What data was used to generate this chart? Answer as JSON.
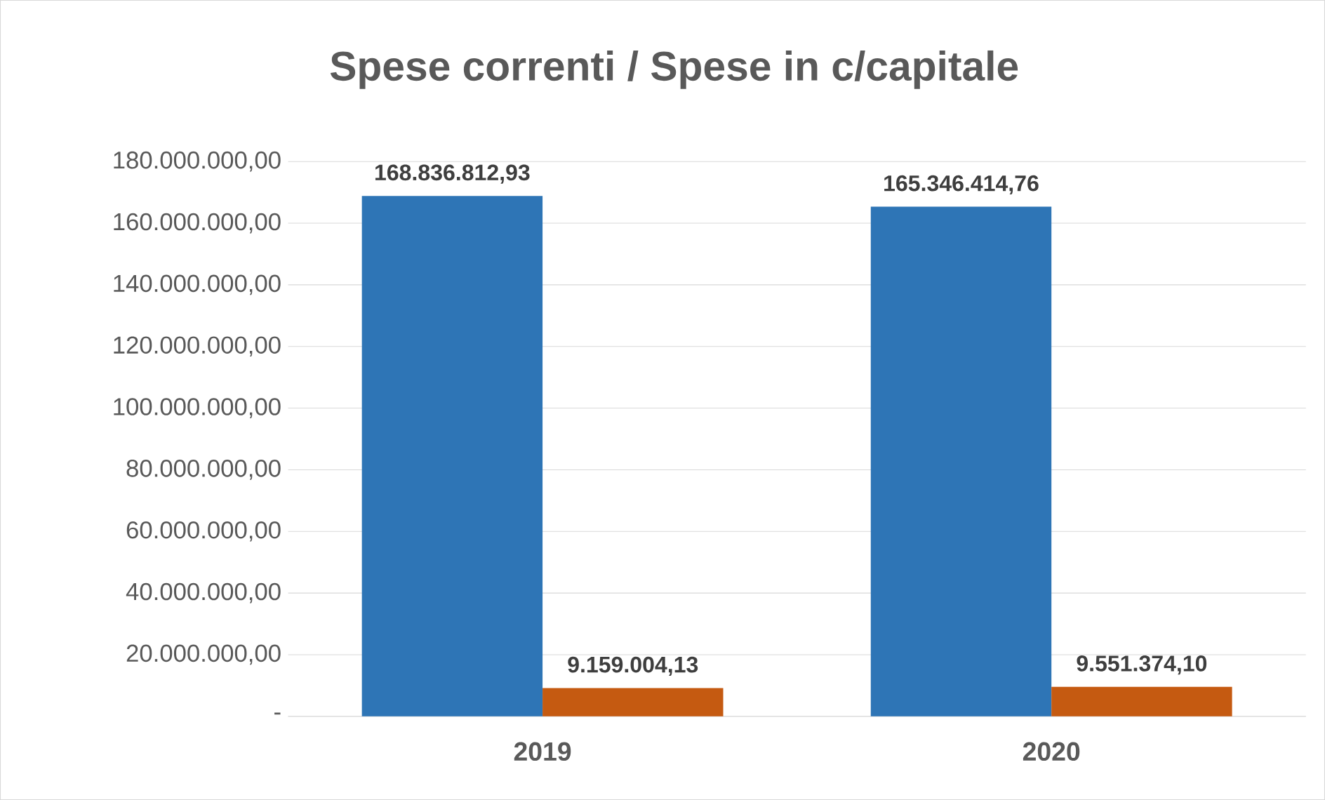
{
  "chart_data": {
    "type": "bar",
    "title": "Spese correnti / Spese in c/capitale",
    "categories": [
      "2019",
      "2020"
    ],
    "series": [
      {
        "color": "#2e75b6",
        "values": [
          168836812.93,
          165346414.76
        ],
        "value_labels": [
          "168.836.812,93",
          "165.346.414,76"
        ]
      },
      {
        "color": "#c55a11",
        "values": [
          9159004.13,
          9551374.1
        ],
        "value_labels": [
          "9.159.004,13",
          "9.551.374,10"
        ]
      }
    ],
    "ylim": [
      0,
      180000000
    ],
    "yticks": [
      {
        "value": 0,
        "label": "-"
      },
      {
        "value": 20000000,
        "label": "20.000.000,00"
      },
      {
        "value": 40000000,
        "label": "40.000.000,00"
      },
      {
        "value": 60000000,
        "label": "60.000.000,00"
      },
      {
        "value": 80000000,
        "label": "80.000.000,00"
      },
      {
        "value": 100000000,
        "label": "100.000.000,00"
      },
      {
        "value": 120000000,
        "label": "120.000.000,00"
      },
      {
        "value": 140000000,
        "label": "140.000.000,00"
      },
      {
        "value": 160000000,
        "label": "160.000.000,00"
      },
      {
        "value": 180000000,
        "label": "180.000.000,00"
      }
    ],
    "grid": "y"
  }
}
